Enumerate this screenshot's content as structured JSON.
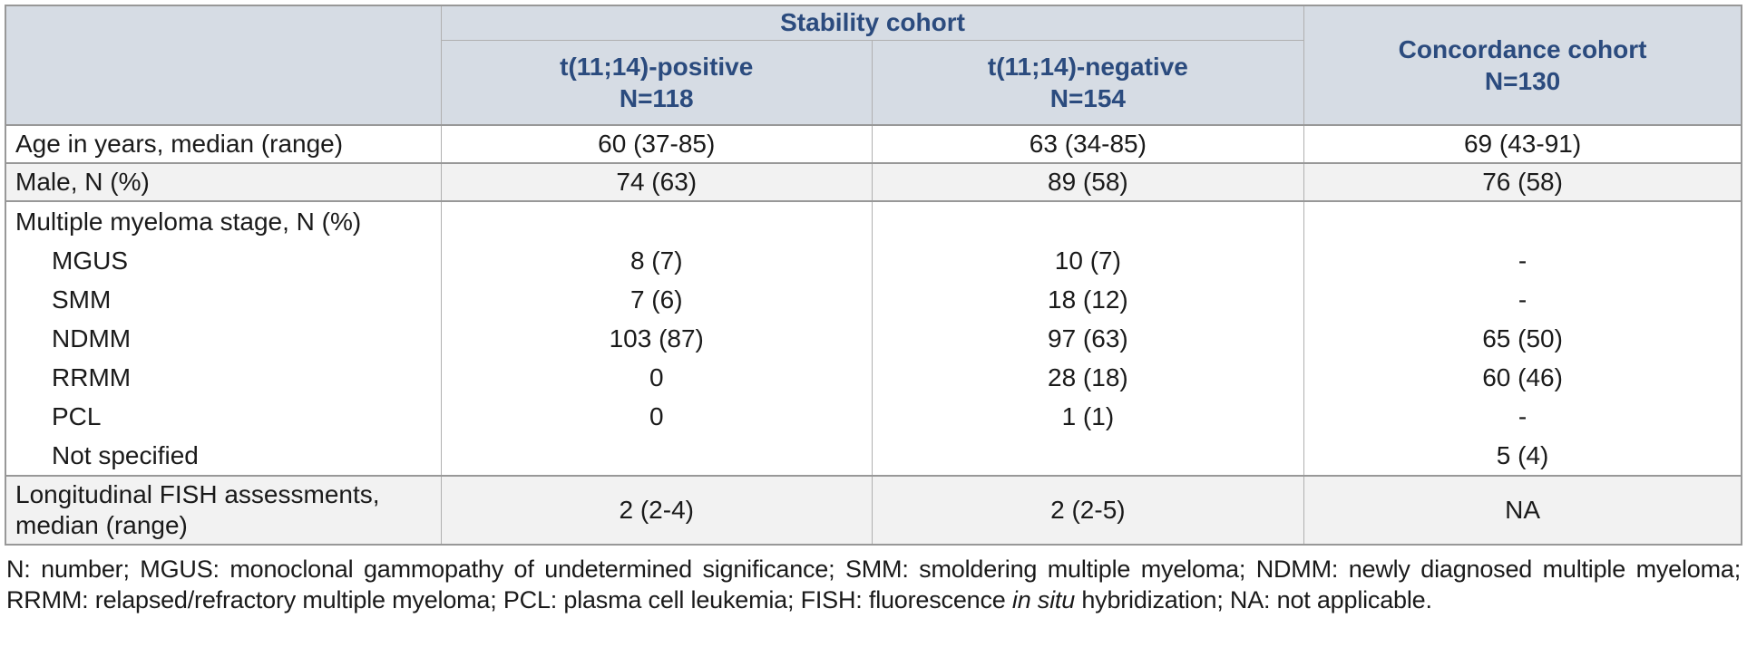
{
  "colors": {
    "header_bg": "#d6dce4",
    "header_text": "#2b4b7e",
    "row_stripe": "#f2f2f2",
    "border_strong": "#989898",
    "border_light": "#b0b0b0",
    "body_text": "#1a1a1a"
  },
  "table": {
    "header": {
      "stability_group": "Stability cohort",
      "positive_line1": "t(11;14)-positive",
      "positive_line2": "N=118",
      "negative_line1": "t(11;14)-negative",
      "negative_line2": "N=154",
      "concordance_line1": "Concordance cohort",
      "concordance_line2": "N=130"
    },
    "rows": {
      "age": {
        "label": "Age in years, median (range)",
        "positive": "60 (37-85)",
        "negative": "63 (34-85)",
        "concordance": "69 (43-91)"
      },
      "male": {
        "label": "Male, N (%)",
        "positive": "74 (63)",
        "negative": "89 (58)",
        "concordance": "76 (58)"
      },
      "stage": {
        "label": "Multiple myeloma stage, N (%)",
        "sub": [
          {
            "label": "MGUS",
            "positive": "8 (7)",
            "negative": "10 (7)",
            "concordance": "-"
          },
          {
            "label": "SMM",
            "positive": "7 (6)",
            "negative": "18 (12)",
            "concordance": "-"
          },
          {
            "label": "NDMM",
            "positive": "103 (87)",
            "negative": "97 (63)",
            "concordance": "65 (50)"
          },
          {
            "label": "RRMM",
            "positive": "0",
            "negative": "28 (18)",
            "concordance": "60 (46)"
          },
          {
            "label": "PCL",
            "positive": "0",
            "negative": "1 (1)",
            "concordance": "-"
          },
          {
            "label": "Not specified",
            "positive": "",
            "negative": "",
            "concordance": "5 (4)"
          }
        ]
      },
      "fish": {
        "label_line1": "Longitudinal FISH assessments,",
        "label_line2": "median (range)",
        "positive": "2 (2-4)",
        "negative": "2 (2-5)",
        "concordance": "NA"
      }
    }
  },
  "footnote": {
    "text_before_italic": "N: number; MGUS: monoclonal gammopathy of undetermined significance; SMM: smoldering multiple myeloma; NDMM: newly diagnosed multiple myeloma; RRMM: relapsed/refractory multiple myeloma; PCL: plasma cell leukemia; FISH: fluorescence ",
    "italic": "in situ",
    "text_after_italic": " hybridization; NA: not applicable."
  }
}
